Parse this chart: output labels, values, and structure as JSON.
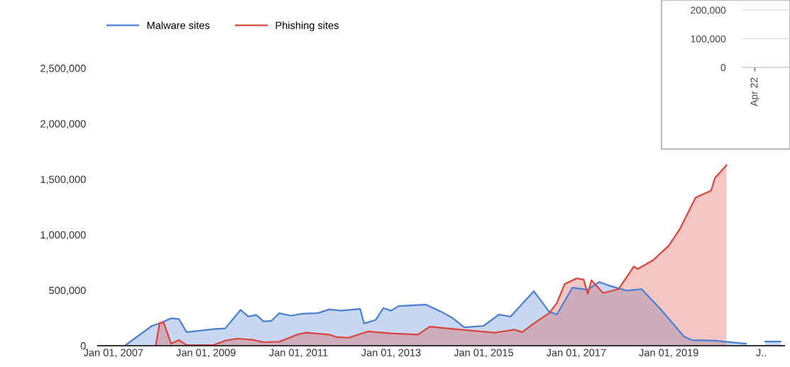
{
  "chart_data": [
    {
      "type": "area",
      "legend": "top",
      "grid": false,
      "xlim": [
        "2006-09",
        "2021-07"
      ],
      "ylim": [
        0,
        2500000
      ],
      "yticks": [
        {
          "value": 0,
          "label": "0"
        },
        {
          "value": 500000,
          "label": "500,000"
        },
        {
          "value": 1000000,
          "label": "1,000,000"
        },
        {
          "value": 1500000,
          "label": "1,500,000"
        },
        {
          "value": 2000000,
          "label": "2,000,000"
        },
        {
          "value": 2500000,
          "label": "2,500,000"
        }
      ],
      "xticks": [
        {
          "value": "2007-01-01",
          "label": "Jan 01, 2007"
        },
        {
          "value": "2009-01-01",
          "label": "Jan 01, 2009"
        },
        {
          "value": "2011-01-01",
          "label": "Jan 01, 2011"
        },
        {
          "value": "2013-01-01",
          "label": "Jan 01, 2013"
        },
        {
          "value": "2015-01-01",
          "label": "Jan 01, 2015"
        },
        {
          "value": "2017-01-01",
          "label": "Jan 01, 2017"
        },
        {
          "value": "2019-01-01",
          "label": "Jan 01, 2019"
        },
        {
          "value": "2021-01-01",
          "label": "J.."
        }
      ],
      "series": [
        {
          "name": "Malware sites",
          "color": "#4a7fd4",
          "x": [
            "2006-09",
            "2007-04",
            "2007-11",
            "2008-01",
            "2008-04",
            "2008-06",
            "2008-08",
            "2008-11",
            "2009-03",
            "2009-06",
            "2009-10",
            "2009-12",
            "2010-02",
            "2010-04",
            "2010-06",
            "2010-08",
            "2010-11",
            "2011-02",
            "2011-06",
            "2011-09",
            "2011-12",
            "2012-05",
            "2012-06",
            "2012-09",
            "2012-11",
            "2013-01",
            "2013-03",
            "2013-10",
            "2014-02",
            "2014-05",
            "2014-08",
            "2015-01",
            "2015-05",
            "2015-08",
            "2016-02",
            "2016-06",
            "2016-08",
            "2016-12",
            "2017-04",
            "2017-07",
            "2017-10",
            "2018-02",
            "2018-06",
            "2018-11",
            "2019-05",
            "2019-07",
            "2020-01",
            "2020-09",
            "2020-11",
            "2021-02",
            "2021-06"
          ],
          "values": [
            0,
            0,
            179000,
            201000,
            247000,
            240000,
            122000,
            133000,
            149000,
            156000,
            323000,
            263000,
            277000,
            218000,
            224000,
            293000,
            270000,
            288000,
            293000,
            327000,
            316000,
            332000,
            201000,
            232000,
            339000,
            316000,
            357000,
            370000,
            306000,
            249000,
            166000,
            179000,
            281000,
            262000,
            491000,
            306000,
            281000,
            523000,
            504000,
            574000,
            536000,
            497000,
            510000,
            325000,
            83000,
            51000,
            45000,
            19000,
            null,
            38000,
            38000
          ]
        },
        {
          "name": "Phishing sites",
          "color": "#d9443c",
          "x": [
            "2006-09",
            "2007-12",
            "2008-01",
            "2008-02",
            "2008-04",
            "2008-06",
            "2008-08",
            "2009-03",
            "2009-06",
            "2009-09",
            "2010-01",
            "2010-04",
            "2010-08",
            "2011-01",
            "2011-03",
            "2011-09",
            "2011-11",
            "2012-02",
            "2012-07",
            "2013-01",
            "2013-08",
            "2013-11",
            "2014-07",
            "2015-04",
            "2015-09",
            "2015-11",
            "2016-02",
            "2016-06",
            "2016-08",
            "2016-10",
            "2017-01",
            "2017-03",
            "2017-04",
            "2017-05",
            "2017-08",
            "2017-12",
            "2018-04",
            "2018-05",
            "2018-09",
            "2019-01",
            "2019-04",
            "2019-08",
            "2019-12",
            "2020-01",
            "2020-04"
          ],
          "values": [
            0,
            0,
            204000,
            210000,
            19000,
            51000,
            6000,
            6000,
            45000,
            64000,
            54000,
            32000,
            36000,
            104000,
            117000,
            100000,
            77000,
            72000,
            128000,
            111000,
            100000,
            172000,
            145000,
            117000,
            145000,
            122000,
            201000,
            293000,
            384000,
            555000,
            606000,
            596000,
            466000,
            589000,
            475000,
            510000,
            714000,
            691000,
            772000,
            901000,
            1056000,
            1334000,
            1397000,
            1512000,
            1626000
          ]
        }
      ]
    },
    {
      "type": "line",
      "grid": "y",
      "categories": [
        "Apr 22"
      ],
      "values": [
        null
      ],
      "ylim": [
        0,
        235000
      ],
      "yticks": [
        {
          "value": 0,
          "label": "0"
        },
        {
          "value": 100000,
          "label": "100,000"
        },
        {
          "value": 200000,
          "label": "200,000"
        }
      ]
    }
  ]
}
